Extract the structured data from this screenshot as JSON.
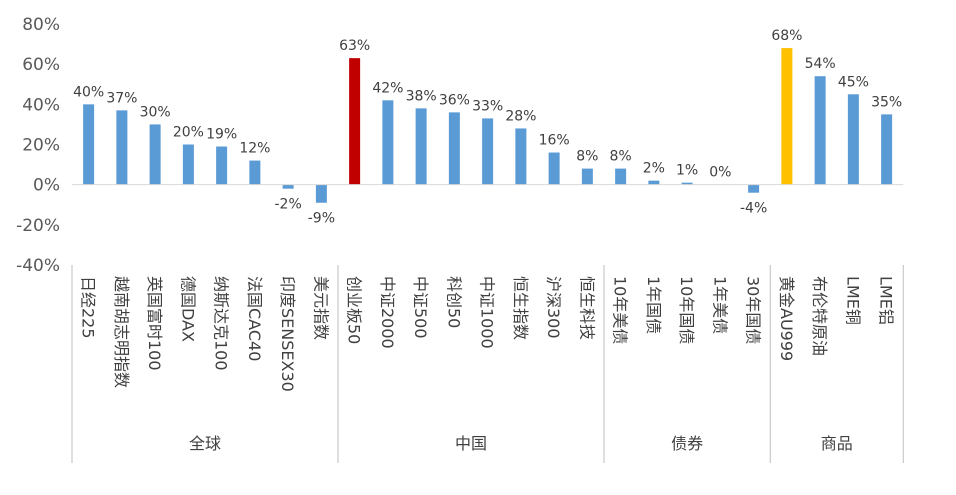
{
  "chart_data": {
    "type": "bar",
    "title": "",
    "xlabel": "",
    "ylabel": "",
    "ylim": [
      -40,
      80
    ],
    "yticks": [
      -40,
      -20,
      0,
      20,
      40,
      60,
      80
    ],
    "ytick_labels": [
      "-40%",
      "-20%",
      "0%",
      "20%",
      "40%",
      "60%",
      "80%"
    ],
    "grid": false,
    "value_suffix": "%",
    "colors": {
      "default": "#5b9bd5",
      "highlight_red": "#c00000",
      "highlight_gold": "#ffc000"
    },
    "categories": [
      "日经225",
      "越南胡志明指数",
      "英国富时100",
      "德国DAX",
      "纳斯达克100",
      "法国CAC40",
      "印度SENSEX30",
      "美元指数",
      "创业板50",
      "中证2000",
      "中证500",
      "科创50",
      "中证1000",
      "恒生指数",
      "沪深300",
      "恒生科技",
      "10年美债",
      "1年国债",
      "10年国债",
      "1年美债",
      "30年国债",
      "黄金AU999",
      "布伦特原油",
      "LME铜",
      "LME铝"
    ],
    "values": [
      40,
      37,
      30,
      20,
      19,
      12,
      -2,
      -9,
      63,
      42,
      38,
      36,
      33,
      28,
      16,
      8,
      8,
      2,
      1,
      0,
      -4,
      68,
      54,
      45,
      35
    ],
    "labels": [
      "40%",
      "37%",
      "30%",
      "20%",
      "19%",
      "12%",
      "-2%",
      "-9%",
      "63%",
      "42%",
      "38%",
      "36%",
      "33%",
      "28%",
      "16%",
      "8%",
      "8%",
      "2%",
      "1%",
      "0%",
      "-4%",
      "68%",
      "54%",
      "45%",
      "35%"
    ],
    "bar_colors": [
      "default",
      "default",
      "default",
      "default",
      "default",
      "default",
      "default",
      "default",
      "highlight_red",
      "default",
      "default",
      "default",
      "default",
      "default",
      "default",
      "default",
      "default",
      "default",
      "default",
      "default",
      "default",
      "highlight_gold",
      "default",
      "default",
      "default"
    ],
    "groups": [
      {
        "name": "全球",
        "start": 0,
        "end": 7
      },
      {
        "name": "中国",
        "start": 8,
        "end": 15
      },
      {
        "name": "债券",
        "start": 16,
        "end": 20
      },
      {
        "name": "商品",
        "start": 21,
        "end": 24
      }
    ]
  }
}
